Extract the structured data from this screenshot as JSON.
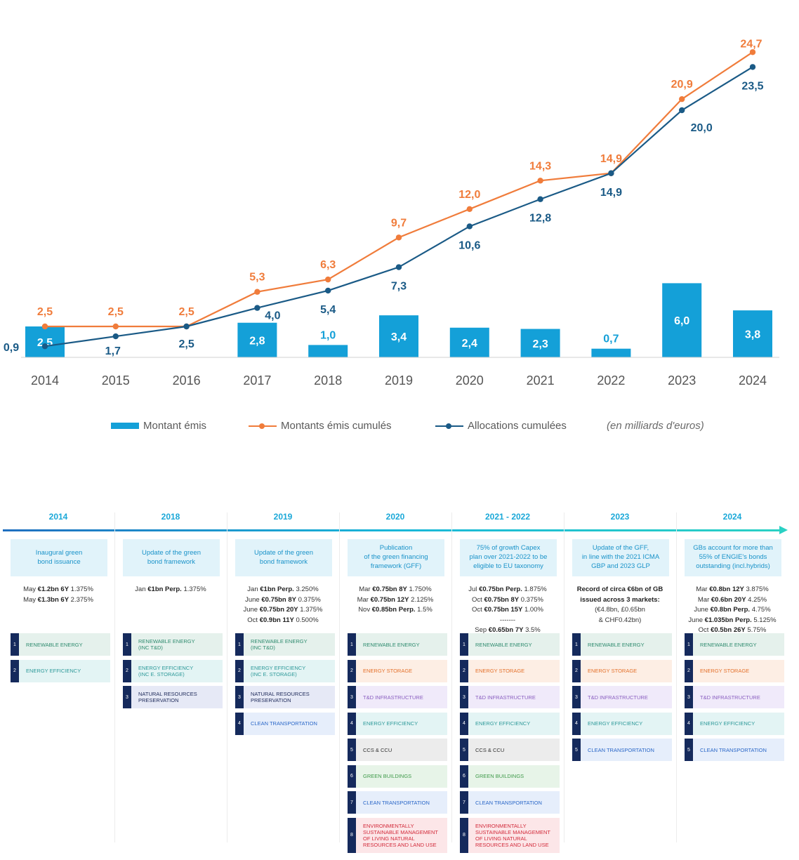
{
  "colors": {
    "bar": "#14a0d8",
    "issued_cumulative": "#f07c3b",
    "allocations_cumulative": "#1a5a86",
    "axis_text": "#555555"
  },
  "chart_data": {
    "type": "bar",
    "categories": [
      "2014",
      "2015",
      "2016",
      "2017",
      "2018",
      "2019",
      "2020",
      "2021",
      "2022",
      "2023",
      "2024"
    ],
    "series": [
      {
        "name": "Montant émis",
        "type": "bar",
        "values": [
          2.5,
          null,
          null,
          2.8,
          1.0,
          3.4,
          2.4,
          2.3,
          0.7,
          6.0,
          3.8
        ],
        "labels": [
          "2,5",
          "",
          "",
          "2,8",
          "1,0",
          "3,4",
          "2,4",
          "2,3",
          "0,7",
          "6,0",
          "3,8"
        ]
      },
      {
        "name": "Montants émis cumulés",
        "type": "line",
        "values": [
          2.5,
          2.5,
          2.5,
          5.3,
          6.3,
          9.7,
          12.0,
          14.3,
          14.9,
          20.9,
          24.7
        ],
        "labels": [
          "2,5",
          "2,5",
          "2,5",
          "5,3",
          "6,3",
          "9,7",
          "12,0",
          "14,3",
          "14,9",
          "20,9",
          "24,7"
        ]
      },
      {
        "name": "Allocations cumulées",
        "type": "line",
        "values": [
          0.9,
          1.7,
          2.5,
          4.0,
          5.4,
          7.3,
          10.6,
          12.8,
          14.9,
          20.0,
          23.5
        ],
        "labels": [
          "0,9",
          "1,7",
          "2,5",
          "4,0",
          "5,4",
          "7,3",
          "10,6",
          "12,8",
          "14,9",
          "20,0",
          "23,5"
        ]
      }
    ],
    "unit_note": "(en milliards d'euros)",
    "legend_position": "bottom",
    "grid": false,
    "ylim": [
      0,
      26
    ]
  },
  "timeline": [
    {
      "year": "2014",
      "milestone": "Inaugural green\nbond issuance",
      "issues": [
        {
          "pre": "May ",
          "bold": "€1.2bn 6Y",
          "post": " 1.375%"
        },
        {
          "pre": "May ",
          "bold": "€1.3bn 6Y",
          "post": " 2.375%"
        }
      ],
      "categories": [
        {
          "n": "1",
          "label": "RENEWABLE ENERGY",
          "color": "#2e8b6e",
          "bg": "#e5f1ec"
        },
        {
          "n": "2",
          "label": "ENERGY EFFICIENCY",
          "color": "#2f9a9a",
          "bg": "#e3f4f4"
        }
      ]
    },
    {
      "year": "2018",
      "milestone": "Update of the green\nbond framework",
      "issues": [
        {
          "pre": "Jan ",
          "bold": "€1bn Perp.",
          "post": " 1.375%"
        }
      ],
      "categories": [
        {
          "n": "1",
          "label": "RENEWABLE ENERGY\n(inc T&D)",
          "color": "#2e8b6e",
          "bg": "#e5f1ec"
        },
        {
          "n": "2",
          "label": "ENERGY EFFICIENCY\n(inc E. Storage)",
          "color": "#2f9a9a",
          "bg": "#e3f4f4"
        },
        {
          "n": "3",
          "label": "NATURAL RESOURCES\nPRESERVATION",
          "color": "#1e2a5a",
          "bg": "#e6e9f6"
        }
      ]
    },
    {
      "year": "2019",
      "milestone": "Update of the green\nbond framework",
      "issues": [
        {
          "pre": "Jan ",
          "bold": "€1bn Perp.",
          "post": " 3.250%"
        },
        {
          "pre": "June ",
          "bold": "€0.75bn 8Y",
          "post": " 0.375%"
        },
        {
          "pre": "June ",
          "bold": "€0.75bn 20Y",
          "post": " 1.375%"
        },
        {
          "pre": "Oct ",
          "bold": "€0.9bn 11Y",
          "post": " 0.500%"
        }
      ],
      "categories": [
        {
          "n": "1",
          "label": "RENEWABLE ENERGY\n(inc T&D)",
          "color": "#2e8b6e",
          "bg": "#e5f1ec"
        },
        {
          "n": "2",
          "label": "ENERGY EFFICIENCY\n(inc E. Storage)",
          "color": "#2f9a9a",
          "bg": "#e3f4f4"
        },
        {
          "n": "3",
          "label": "NATURAL RESOURCES\nPRESERVATION",
          "color": "#1e2a5a",
          "bg": "#e6e9f6"
        },
        {
          "n": "4",
          "label": "CLEAN TRANSPORTATION",
          "color": "#2a67c8",
          "bg": "#e6eefb"
        }
      ]
    },
    {
      "year": "2020",
      "milestone": "Publication\nof the green financing\nframework (GFF)",
      "issues": [
        {
          "pre": "Mar ",
          "bold": "€0.75bn 8Y",
          "post": " 1.750%"
        },
        {
          "pre": "Mar ",
          "bold": "€0.75bn 12Y",
          "post": " 2.125%"
        },
        {
          "pre": "Nov ",
          "bold": "€0.85bn Perp.",
          "post": " 1.5%"
        }
      ],
      "categories": [
        {
          "n": "1",
          "label": "RENEWABLE ENERGY",
          "color": "#2e8b6e",
          "bg": "#e5f1ec"
        },
        {
          "n": "2",
          "label": "ENERGY STORAGE",
          "color": "#e4712b",
          "bg": "#fdeee4"
        },
        {
          "n": "3",
          "label": "T&D INFRASTRUCTURE",
          "color": "#8a5fc0",
          "bg": "#f0eafa"
        },
        {
          "n": "4",
          "label": "ENERGY EFFICIENCY",
          "color": "#2f9a9a",
          "bg": "#e3f4f4"
        },
        {
          "n": "5",
          "label": "CCS & CCU",
          "color": "#333333",
          "bg": "#ececec"
        },
        {
          "n": "6",
          "label": "GREEN BUILDINGS",
          "color": "#3f9a4a",
          "bg": "#e7f4e8"
        },
        {
          "n": "7",
          "label": "CLEAN TRANSPORTATION",
          "color": "#2a67c8",
          "bg": "#e6eefb"
        },
        {
          "n": "8",
          "label": "ENVIRONMENTALLY\nSUSTAINABLE MANAGEMENT\nOF LIVING NATURAL\nRESOURCES AND LAND USE",
          "color": "#d22a3a",
          "bg": "#fce6e8",
          "tall": true
        }
      ]
    },
    {
      "year": "2021 - 2022",
      "milestone": "75% of growth Capex\nplan over 2021-2022 to be\neligible to EU taxonomy",
      "issues": [
        {
          "pre": "Jul ",
          "bold": "€0.75bn Perp.",
          "post": " 1.875%"
        },
        {
          "pre": "Oct ",
          "bold": "€0.75bn 8Y",
          "post": " 0.375%"
        },
        {
          "pre": "Oct ",
          "bold": "€0.75bn 15Y",
          "post": " 1.00%"
        },
        {
          "pre": "",
          "bold": "",
          "post": "-------"
        },
        {
          "pre": "Sep ",
          "bold": "€0.65bn 7Y",
          "post": " 3.5%"
        }
      ],
      "categories": [
        {
          "n": "1",
          "label": "RENEWABLE ENERGY",
          "color": "#2e8b6e",
          "bg": "#e5f1ec"
        },
        {
          "n": "2",
          "label": "ENERGY STORAGE",
          "color": "#e4712b",
          "bg": "#fdeee4"
        },
        {
          "n": "3",
          "label": "T&D INFRASTRUCTURE",
          "color": "#8a5fc0",
          "bg": "#f0eafa"
        },
        {
          "n": "4",
          "label": "ENERGY EFFICIENCY",
          "color": "#2f9a9a",
          "bg": "#e3f4f4"
        },
        {
          "n": "5",
          "label": "CCS & CCU",
          "color": "#333333",
          "bg": "#ececec"
        },
        {
          "n": "6",
          "label": "GREEN BUILDINGS",
          "color": "#3f9a4a",
          "bg": "#e7f4e8"
        },
        {
          "n": "7",
          "label": "CLEAN TRANSPORTATION",
          "color": "#2a67c8",
          "bg": "#e6eefb"
        },
        {
          "n": "8",
          "label": "ENVIRONMENTALLY\nSUSTAINABLE MANAGEMENT\nOF LIVING NATURAL\nRESOURCES AND LAND USE",
          "color": "#d22a3a",
          "bg": "#fce6e8",
          "tall": true
        }
      ]
    },
    {
      "year": "2023",
      "milestone": "Update of the GFF,\nin line with the 2021 ICMA\nGBP and 2023 GLP",
      "issues": [
        {
          "pre": "",
          "bold": "Record of circa €6bn of GB",
          "post": ""
        },
        {
          "pre": "",
          "bold": "issued across 3 markets:",
          "post": ""
        },
        {
          "pre": "",
          "bold": "",
          "post": "(€4.8bn, £0.65bn"
        },
        {
          "pre": "",
          "bold": "",
          "post": "& CHF0.42bn)"
        }
      ],
      "categories": [
        {
          "n": "1",
          "label": "RENEWABLE ENERGY",
          "color": "#2e8b6e",
          "bg": "#e5f1ec"
        },
        {
          "n": "2",
          "label": "ENERGY STORAGE",
          "color": "#e4712b",
          "bg": "#fdeee4"
        },
        {
          "n": "3",
          "label": "T&D INFRASTRUCTURE",
          "color": "#8a5fc0",
          "bg": "#f0eafa"
        },
        {
          "n": "4",
          "label": "ENERGY EFFICIENCY",
          "color": "#2f9a9a",
          "bg": "#e3f4f4"
        },
        {
          "n": "5",
          "label": "CLEAN TRANSPORTATION",
          "color": "#2a67c8",
          "bg": "#e6eefb"
        }
      ]
    },
    {
      "year": "2024",
      "milestone": "GBs account for more than\n55% of ENGIE's bonds\noutstanding (incl.hybrids)",
      "issues": [
        {
          "pre": "Mar ",
          "bold": "€0.8bn 12Y",
          "post": " 3.875%"
        },
        {
          "pre": "Mar ",
          "bold": "€0.6bn 20Y",
          "post": " 4.25%"
        },
        {
          "pre": "June ",
          "bold": "€0.8bn Perp.",
          "post": " 4.75%"
        },
        {
          "pre": "June ",
          "bold": "€1.035bn Perp.",
          "post": " 5.125%"
        },
        {
          "pre": "Oct ",
          "bold": "€0.5bn 26Y",
          "post": " 5.75%"
        }
      ],
      "categories": [
        {
          "n": "1",
          "label": "RENEWABLE ENERGY",
          "color": "#2e8b6e",
          "bg": "#e5f1ec"
        },
        {
          "n": "2",
          "label": "ENERGY STORAGE",
          "color": "#e4712b",
          "bg": "#fdeee4"
        },
        {
          "n": "3",
          "label": "T&D INFRASTRUCTURE",
          "color": "#8a5fc0",
          "bg": "#f0eafa"
        },
        {
          "n": "4",
          "label": "ENERGY EFFICIENCY",
          "color": "#2f9a9a",
          "bg": "#e3f4f4"
        },
        {
          "n": "5",
          "label": "CLEAN TRANSPORTATION",
          "color": "#2a67c8",
          "bg": "#e6eefb"
        }
      ]
    }
  ]
}
